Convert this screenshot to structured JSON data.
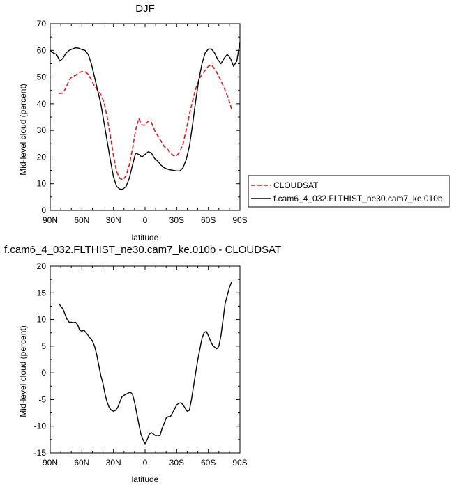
{
  "chart_data": [
    {
      "type": "line",
      "title": "DJF",
      "xlabel": "latitude",
      "ylabel": "Mid-level cloud (percent)",
      "xlim": [
        90,
        -90
      ],
      "ylim": [
        0,
        70
      ],
      "x_ticks": [
        90,
        60,
        30,
        0,
        -30,
        -60,
        -90
      ],
      "x_tick_labels": [
        "90N",
        "60N",
        "30N",
        "0",
        "30S",
        "60S",
        "90S"
      ],
      "y_ticks": [
        0,
        10,
        20,
        30,
        40,
        50,
        60,
        70
      ],
      "y_tick_labels": [
        "0",
        "10",
        "20",
        "30",
        "40",
        "50",
        "60",
        "70"
      ],
      "grid": false,
      "legend_position": "right",
      "series": [
        {
          "name": "CLOUDSAT",
          "color": "#e8141b",
          "dash": "dashed",
          "x": [
            82,
            78,
            75,
            72,
            69,
            66,
            63,
            60,
            57,
            54,
            51,
            48,
            45,
            42,
            39,
            36,
            33,
            30,
            27,
            24,
            21,
            18,
            15,
            12,
            9,
            6,
            3,
            0,
            -3,
            -6,
            -9,
            -12,
            -15,
            -18,
            -21,
            -24,
            -27,
            -30,
            -33,
            -36,
            -39,
            -42,
            -45,
            -48,
            -51,
            -54,
            -57,
            -60,
            -63,
            -66,
            -69,
            -72,
            -75,
            -78,
            -81,
            -82
          ],
          "y": [
            43.8,
            44.0,
            46.0,
            49.0,
            50.2,
            50.6,
            51.6,
            52.0,
            52.0,
            51.0,
            49.0,
            46.5,
            45.0,
            43.5,
            40.5,
            35.0,
            28.0,
            20.5,
            14.5,
            12.0,
            11.5,
            13.0,
            17.0,
            23.0,
            30.0,
            34.5,
            32.0,
            32.0,
            33.5,
            33.0,
            30.0,
            28.0,
            26.0,
            24.0,
            23.0,
            21.5,
            20.5,
            20.5,
            22.0,
            25.0,
            30.0,
            36.0,
            41.0,
            45.5,
            49.0,
            51.0,
            52.5,
            54.0,
            54.5,
            53.0,
            51.0,
            48.5,
            46.0,
            43.0,
            39.5,
            38.0
          ]
        },
        {
          "name": "f.cam6_4_032.FLTHIST_ne30.cam7_ke.010b",
          "color": "#000000",
          "dash": "solid",
          "x": [
            90,
            87,
            84,
            81,
            78,
            75,
            72,
            69,
            66,
            63,
            60,
            57,
            54,
            51,
            48,
            45,
            42,
            39,
            36,
            33,
            30,
            27,
            24,
            21,
            18,
            15,
            12,
            9,
            6,
            3,
            0,
            -3,
            -6,
            -9,
            -12,
            -15,
            -18,
            -21,
            -24,
            -27,
            -30,
            -33,
            -36,
            -39,
            -42,
            -45,
            -48,
            -51,
            -54,
            -57,
            -60,
            -63,
            -66,
            -69,
            -72,
            -75,
            -78,
            -81,
            -84,
            -87,
            -90
          ],
          "y": [
            60.0,
            59.0,
            58.5,
            56.0,
            57.0,
            59.0,
            60.0,
            60.5,
            61.0,
            60.8,
            60.3,
            60.0,
            58.5,
            55.0,
            50.0,
            45.0,
            40.0,
            33.0,
            26.0,
            19.0,
            12.5,
            9.0,
            8.0,
            8.0,
            9.0,
            12.0,
            17.0,
            21.5,
            21.0,
            20.0,
            21.0,
            22.0,
            21.5,
            19.5,
            18.5,
            17.0,
            16.0,
            15.5,
            15.2,
            15.0,
            14.8,
            14.8,
            16.0,
            19.0,
            24.0,
            32.0,
            41.0,
            49.0,
            55.0,
            59.0,
            60.5,
            60.5,
            59.0,
            56.5,
            55.0,
            57.0,
            58.5,
            57.0,
            54.0,
            56.0,
            63.0
          ]
        }
      ]
    },
    {
      "type": "line",
      "title": "f.cam6_4_032.FLTHIST_ne30.cam7_ke.010b - CLOUDSAT",
      "xlabel": "latitude",
      "ylabel": "Mid-level cloud (percent)",
      "xlim": [
        90,
        -90
      ],
      "ylim": [
        -15,
        20
      ],
      "x_ticks": [
        90,
        60,
        30,
        0,
        -30,
        -60,
        -90
      ],
      "x_tick_labels": [
        "90N",
        "60N",
        "30N",
        "0",
        "30S",
        "60S",
        "90S"
      ],
      "y_ticks": [
        -15,
        -10,
        -5,
        0,
        5,
        10,
        15,
        20
      ],
      "y_tick_labels": [
        "-15",
        "-10",
        "-5",
        "0",
        "5",
        "10",
        "15",
        "20"
      ],
      "grid": false,
      "series": [
        {
          "color": "#000000",
          "dash": "solid",
          "x": [
            82,
            80,
            78,
            76,
            74,
            72,
            70,
            68,
            66,
            64,
            62,
            60,
            58,
            56,
            54,
            52,
            50,
            48,
            46,
            44,
            42,
            40,
            38,
            36,
            34,
            32,
            30,
            28,
            26,
            24,
            22,
            20,
            18,
            16,
            14,
            12,
            10,
            8,
            6,
            4,
            2,
            0,
            -2,
            -4,
            -6,
            -8,
            -10,
            -12,
            -14,
            -16,
            -18,
            -20,
            -22,
            -24,
            -26,
            -28,
            -30,
            -32,
            -34,
            -36,
            -38,
            -40,
            -42,
            -44,
            -46,
            -48,
            -50,
            -52,
            -54,
            -56,
            -58,
            -60,
            -62,
            -64,
            -66,
            -68,
            -70,
            -72,
            -74,
            -76,
            -78,
            -80,
            -82
          ],
          "y": [
            13.0,
            12.5,
            12.0,
            11.0,
            10.0,
            9.5,
            9.5,
            9.4,
            9.5,
            9.0,
            8.0,
            7.8,
            8.0,
            7.5,
            7.0,
            6.5,
            6.0,
            5.0,
            3.5,
            1.5,
            -0.5,
            -2.0,
            -4.0,
            -5.5,
            -6.5,
            -7.0,
            -7.2,
            -7.0,
            -6.5,
            -5.5,
            -4.5,
            -4.2,
            -4.0,
            -3.8,
            -3.6,
            -4.0,
            -5.5,
            -7.5,
            -9.5,
            -11.5,
            -12.5,
            -13.3,
            -12.5,
            -11.5,
            -11.2,
            -11.5,
            -11.8,
            -11.7,
            -11.8,
            -10.5,
            -9.5,
            -8.5,
            -8.2,
            -8.2,
            -7.5,
            -6.8,
            -6.0,
            -5.7,
            -5.6,
            -6.0,
            -6.6,
            -7.2,
            -7.0,
            -5.0,
            -2.5,
            0.0,
            2.5,
            4.5,
            6.5,
            7.5,
            7.8,
            7.0,
            6.0,
            5.2,
            4.8,
            4.5,
            5.0,
            7.0,
            10.0,
            13.0,
            14.5,
            16.0,
            17.0
          ]
        }
      ]
    }
  ]
}
